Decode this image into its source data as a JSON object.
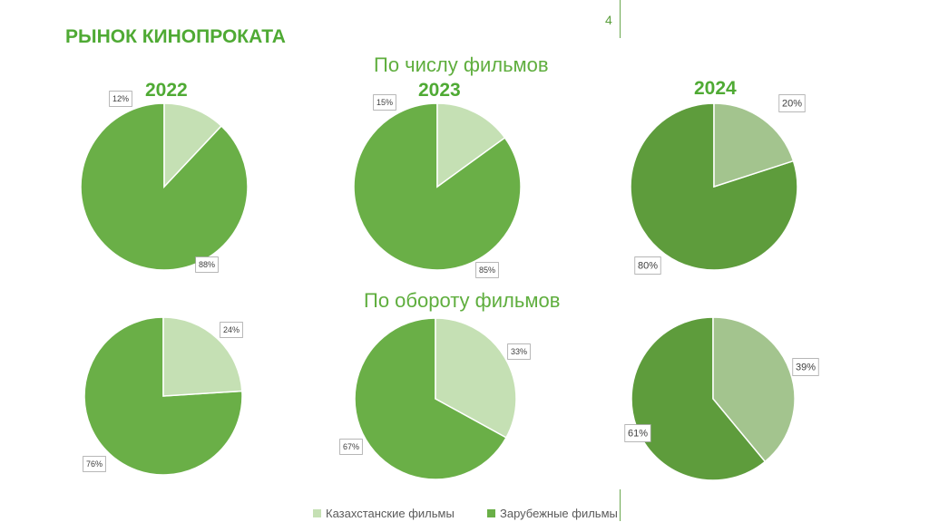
{
  "page_number": "4",
  "title": "РЫНОК КИНОПРОКАТА",
  "sections": [
    "По числу фильмов",
    "По обороту фильмов"
  ],
  "years": [
    "2022",
    "2023",
    "2024"
  ],
  "colors": {
    "kz_light": "#c5e0b4",
    "kz_2024": "#a3c48e",
    "foreign": "#6aaf47",
    "foreign_2024": "#5e9c3c"
  },
  "chart_data": [
    {
      "type": "pie",
      "section": "По числу фильмов",
      "year": "2022",
      "categories": [
        "Казахстанские фильмы",
        "Зарубежные фильмы"
      ],
      "values": [
        12,
        88
      ],
      "labels": [
        "12%",
        "88%"
      ]
    },
    {
      "type": "pie",
      "section": "По числу фильмов",
      "year": "2023",
      "categories": [
        "Казахстанские фильмы",
        "Зарубежные фильмы"
      ],
      "values": [
        15,
        85
      ],
      "labels": [
        "15%",
        "85%"
      ]
    },
    {
      "type": "pie",
      "section": "По числу фильмов",
      "year": "2024",
      "categories": [
        "Казахстанские фильмы",
        "Зарубежные фильмы"
      ],
      "values": [
        20,
        80
      ],
      "labels": [
        "20%",
        "80%"
      ]
    },
    {
      "type": "pie",
      "section": "По обороту фильмов",
      "year": "2022",
      "categories": [
        "Казахстанские фильмы",
        "Зарубежные фильмы"
      ],
      "values": [
        24,
        76
      ],
      "labels": [
        "24%",
        "76%"
      ]
    },
    {
      "type": "pie",
      "section": "По обороту фильмов",
      "year": "2023",
      "categories": [
        "Казахстанские фильмы",
        "Зарубежные фильмы"
      ],
      "values": [
        33,
        67
      ],
      "labels": [
        "33%",
        "67%"
      ]
    },
    {
      "type": "pie",
      "section": "По обороту фильмов",
      "year": "2024",
      "categories": [
        "Казахстанские фильмы",
        "Зарубежные фильмы"
      ],
      "values": [
        39,
        61
      ],
      "labels": [
        "39%",
        "61%"
      ]
    }
  ],
  "legend": [
    {
      "label": "Казахстанские фильмы",
      "color": "#c5e0b4"
    },
    {
      "label": "Зарубежные фильмы",
      "color": "#6aaf47"
    }
  ]
}
